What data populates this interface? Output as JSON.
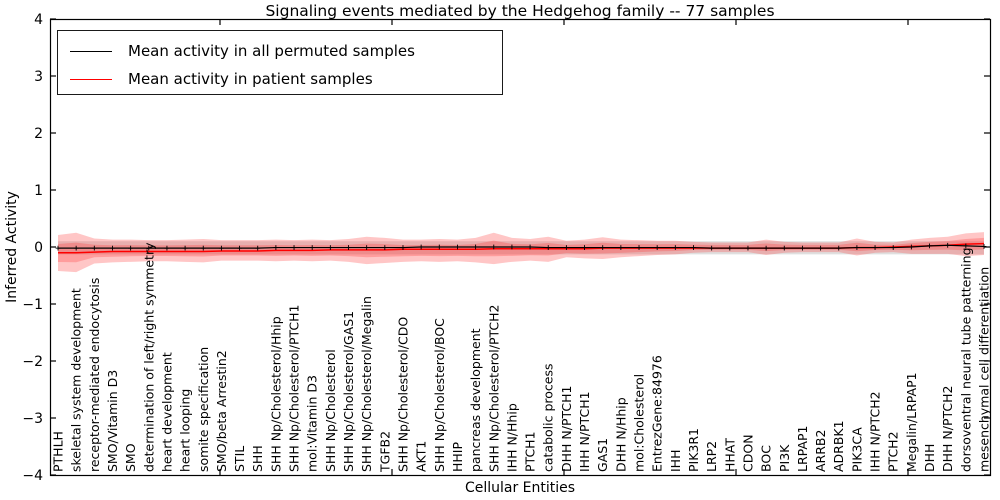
{
  "title": "Signaling events mediated by the Hedgehog family -- 77 samples",
  "legend": {
    "items": [
      {
        "label": "Mean activity in all permuted samples",
        "color": "#000000"
      },
      {
        "label": "Mean activity in patient samples",
        "color": "#ff0000"
      }
    ]
  },
  "axes": {
    "xlabel": "Cellular Entities",
    "ylabel": "Inferred Activity",
    "ytick_labels": [
      "4",
      "3",
      "2",
      "1",
      "0",
      "−1",
      "−2",
      "−3",
      "−4"
    ],
    "ytick_values": [
      4,
      3,
      2,
      1,
      0,
      -1,
      -2,
      -3,
      -4
    ]
  },
  "chart_data": {
    "type": "line",
    "title": "Signaling events mediated by the Hedgehog family -- 77 samples",
    "xlabel": "Cellular Entities",
    "ylabel": "Inferred Activity",
    "ylim": [
      -4,
      4
    ],
    "grid": false,
    "legend_position": "upper left",
    "categories": [
      "PTHLH",
      "skeletal system development",
      "receptor-mediated endocytosis",
      "SMO/Vitamin D3",
      "SMO",
      "determination of left/right symmetry",
      "heart development",
      "heart looping",
      "somite specification",
      "SMO/beta Arrestin2",
      "STIL",
      "SHH",
      "SHH Np/Cholesterol/Hhip",
      "SHH Np/Cholesterol/PTCH1",
      "mol:Vitamin D3",
      "SHH Np/Cholesterol",
      "SHH Np/Cholesterol/GAS1",
      "SHH Np/Cholesterol/Megalin",
      "TGFB2",
      "SHH Np/Cholesterol/CDO",
      "AKT1",
      "SHH Np/Cholesterol/BOC",
      "HHIP",
      "pancreas development",
      "SHH Np/Cholesterol/PTCH2",
      "IHH N/Hhip",
      "PTCH1",
      "catabolic process",
      "DHH N/PTCH1",
      "IHH N/PTCH1",
      "GAS1",
      "DHH N/Hhip",
      "mol:Cholesterol",
      "EntrezGene:84976",
      "IHH",
      "PIK3R1",
      "LRP2",
      "HHAT",
      "CDON",
      "BOC",
      "PI3K",
      "LRPAP1",
      "ARRB2",
      "ADRBK1",
      "PIK3CA",
      "IHH N/PTCH2",
      "PTCH2",
      "Megalin/LRPAP1",
      "DHH",
      "DHH N/PTCH2",
      "dorsoventral neural tube patterning",
      "mesenchymal cell differentiation"
    ],
    "series": [
      {
        "name": "Mean activity in all permuted samples",
        "color": "#000000",
        "marker": "plus",
        "values": [
          -0.02,
          -0.02,
          -0.02,
          -0.02,
          -0.02,
          -0.02,
          -0.02,
          -0.02,
          -0.02,
          -0.02,
          -0.02,
          -0.02,
          -0.01,
          -0.01,
          -0.01,
          -0.01,
          -0.01,
          -0.01,
          -0.01,
          -0.01,
          0,
          0,
          0,
          0,
          0,
          0,
          0,
          -0.01,
          -0.01,
          -0.01,
          -0.01,
          -0.01,
          -0.01,
          -0.01,
          -0.01,
          -0.01,
          -0.02,
          -0.02,
          -0.02,
          -0.02,
          -0.02,
          -0.02,
          -0.02,
          -0.02,
          -0.01,
          -0.01,
          -0.01,
          0,
          0.02,
          0.03,
          0.02,
          0.01
        ]
      },
      {
        "name": "Mean activity in patient samples",
        "color": "#ff0000",
        "marker": "none",
        "values": [
          -0.1,
          -0.1,
          -0.09,
          -0.08,
          -0.08,
          -0.08,
          -0.08,
          -0.08,
          -0.08,
          -0.07,
          -0.07,
          -0.07,
          -0.06,
          -0.06,
          -0.06,
          -0.05,
          -0.05,
          -0.05,
          -0.05,
          -0.04,
          -0.04,
          -0.04,
          -0.04,
          -0.04,
          -0.03,
          -0.03,
          -0.03,
          -0.03,
          -0.03,
          -0.03,
          -0.02,
          -0.02,
          -0.02,
          -0.02,
          -0.02,
          -0.02,
          -0.02,
          -0.02,
          -0.02,
          -0.02,
          -0.02,
          -0.02,
          -0.02,
          -0.02,
          -0.01,
          -0.01,
          0,
          0.01,
          0.02,
          0.03,
          0.05,
          0.06
        ]
      }
    ],
    "bands": [
      {
        "name": "permuted samples std band",
        "color": "#c0c0c0",
        "opacity": 0.5,
        "upper": 0.1,
        "lower": -0.13
      },
      {
        "name": "patient samples std band",
        "color": "#ff3333",
        "opacity": 0.28,
        "nested_inner_scale": 0.5,
        "upper": [
          0.21,
          0.25,
          0.15,
          0.13,
          0.13,
          0.12,
          0.12,
          0.13,
          0.14,
          0.12,
          0.12,
          0.12,
          0.13,
          0.12,
          0.13,
          0.12,
          0.14,
          0.18,
          0.16,
          0.13,
          0.13,
          0.14,
          0.13,
          0.16,
          0.25,
          0.16,
          0.14,
          0.18,
          0.11,
          0.13,
          0.17,
          0.13,
          0.12,
          0.11,
          0.11,
          0.09,
          0.08,
          0.08,
          0.08,
          0.13,
          0.09,
          0.08,
          0.08,
          0.08,
          0.15,
          0.09,
          0.08,
          0.13,
          0.16,
          0.18,
          0.24,
          0.26
        ],
        "lower": [
          -0.42,
          -0.44,
          -0.29,
          -0.27,
          -0.26,
          -0.25,
          -0.25,
          -0.26,
          -0.27,
          -0.24,
          -0.24,
          -0.24,
          -0.25,
          -0.24,
          -0.25,
          -0.24,
          -0.26,
          -0.3,
          -0.28,
          -0.26,
          -0.25,
          -0.26,
          -0.25,
          -0.27,
          -0.3,
          -0.26,
          -0.24,
          -0.26,
          -0.18,
          -0.2,
          -0.21,
          -0.18,
          -0.16,
          -0.14,
          -0.13,
          -0.1,
          -0.09,
          -0.09,
          -0.09,
          -0.14,
          -0.1,
          -0.09,
          -0.09,
          -0.09,
          -0.15,
          -0.1,
          -0.09,
          -0.12,
          -0.12,
          -0.12,
          -0.16,
          -0.14
        ]
      }
    ]
  }
}
